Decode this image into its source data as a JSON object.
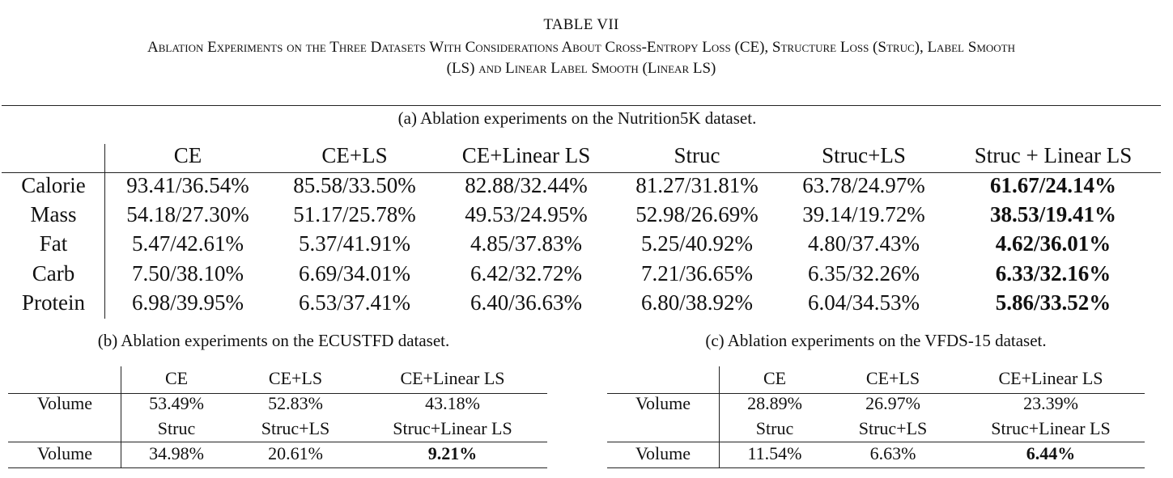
{
  "table_number": "TABLE VII",
  "table_caption_line1": "Ablation Experiments on the Three Datasets With Considerations About Cross-Entropy Loss (CE), Structure Loss (Struc), Label Smooth",
  "table_caption_line2": "(LS) and Linear Label Smooth (Linear LS)",
  "table_a": {
    "caption": "(a) Ablation experiments on the Nutrition5K dataset.",
    "columns": [
      "CE",
      "CE+LS",
      "CE+Linear LS",
      "Struc",
      "Struc+LS",
      "Struc + Linear LS"
    ],
    "rows": [
      {
        "label": "Calorie",
        "values": [
          "93.41/36.54%",
          "85.58/33.50%",
          "82.88/32.44%",
          "81.27/31.81%",
          "63.78/24.97%",
          "61.67/24.14%"
        ]
      },
      {
        "label": "Mass",
        "values": [
          "54.18/27.30%",
          "51.17/25.78%",
          "49.53/24.95%",
          "52.98/26.69%",
          "39.14/19.72%",
          "38.53/19.41%"
        ]
      },
      {
        "label": "Fat",
        "values": [
          "5.47/42.61%",
          "5.37/41.91%",
          "4.85/37.83%",
          "5.25/40.92%",
          "4.80/37.43%",
          "4.62/36.01%"
        ]
      },
      {
        "label": "Carb",
        "values": [
          "7.50/38.10%",
          "6.69/34.01%",
          "6.42/32.72%",
          "7.21/36.65%",
          "6.35/32.26%",
          "6.33/32.16%"
        ]
      },
      {
        "label": "Protein",
        "values": [
          "6.98/39.95%",
          "6.53/37.41%",
          "6.40/36.63%",
          "6.80/38.92%",
          "6.04/34.53%",
          "5.86/33.52%"
        ]
      }
    ]
  },
  "table_b": {
    "caption": "(b) Ablation experiments on the ECUSTFD dataset.",
    "header1": [
      "CE",
      "CE+LS",
      "CE+Linear LS"
    ],
    "row1_label": "Volume",
    "row1": [
      "53.49%",
      "52.83%",
      "43.18%"
    ],
    "header2": [
      "Struc",
      "Struc+LS",
      "Struc+Linear LS"
    ],
    "row2_label": "Volume",
    "row2": [
      "34.98%",
      "20.61%",
      "9.21%"
    ]
  },
  "table_c": {
    "caption": "(c) Ablation experiments on the VFDS-15 dataset.",
    "header1": [
      "CE",
      "CE+LS",
      "CE+Linear LS"
    ],
    "row1_label": "Volume",
    "row1": [
      "28.89%",
      "26.97%",
      "23.39%"
    ],
    "header2": [
      "Struc",
      "Struc+LS",
      "Struc+Linear LS"
    ],
    "row2_label": "Volume",
    "row2": [
      "11.54%",
      "6.63%",
      "6.44%"
    ]
  }
}
